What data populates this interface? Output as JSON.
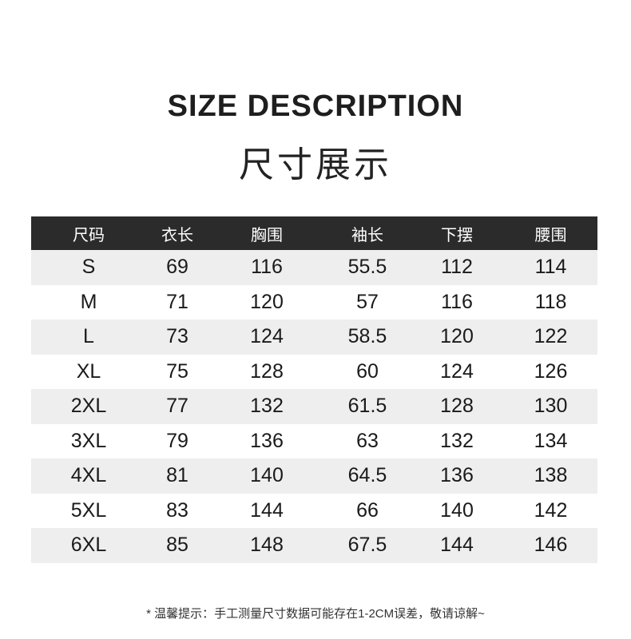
{
  "title_en": "SIZE DESCRIPTION",
  "title_cn": "尺寸展示",
  "table": {
    "headers": [
      "尺码",
      "衣长",
      "胸围",
      "袖长",
      "下摆",
      "腰围"
    ],
    "rows": [
      [
        "S",
        "69",
        "116",
        "55.5",
        "112",
        "114"
      ],
      [
        "M",
        "71",
        "120",
        "57",
        "116",
        "118"
      ],
      [
        "L",
        "73",
        "124",
        "58.5",
        "120",
        "122"
      ],
      [
        "XL",
        "75",
        "128",
        "60",
        "124",
        "126"
      ],
      [
        "2XL",
        "77",
        "132",
        "61.5",
        "128",
        "130"
      ],
      [
        "3XL",
        "79",
        "136",
        "63",
        "132",
        "134"
      ],
      [
        "4XL",
        "81",
        "140",
        "64.5",
        "136",
        "138"
      ],
      [
        "5XL",
        "83",
        "144",
        "66",
        "140",
        "142"
      ],
      [
        "6XL",
        "85",
        "148",
        "67.5",
        "144",
        "146"
      ]
    ]
  },
  "note": "* 温馨提示：手工测量尺寸数据可能存在1-2CM误差，敬请谅解~",
  "colors": {
    "header_bg": "#2b2b2b",
    "stripe": "#eeeeee"
  }
}
